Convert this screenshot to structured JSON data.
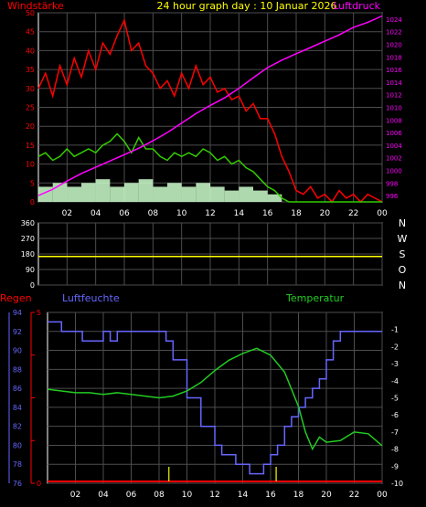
{
  "header": {
    "title": "24 hour graph day : 10 Januar 2026",
    "left_label": "Windstärke",
    "right_label": "Luftdruck"
  },
  "x_ticks": [
    "02",
    "04",
    "06",
    "08",
    "10",
    "12",
    "14",
    "16",
    "18",
    "20",
    "22",
    "00"
  ],
  "colors": {
    "wind_gust": "#ff0000",
    "wind_avg": "#33cc00",
    "wind_low": "#ccffcc",
    "pressure": "#ff00ff",
    "direction": "#ffff00",
    "humidity": "#6666ff",
    "temperature": "#22cc22",
    "rain": "#ff0000",
    "grid": "#4d4d4d"
  },
  "chart_data": [
    {
      "type": "line",
      "name_id": "wind-pressure",
      "title": "24 hour graph day : 10 Januar 2026",
      "ylabel": "Windstärke",
      "y2label": "Luftdruck",
      "x_range_hours": [
        0,
        24
      ],
      "ylim": [
        0,
        50
      ],
      "y_ticks": [
        "0",
        "5",
        "10",
        "15",
        "20",
        "25",
        "30",
        "35",
        "40",
        "45",
        "50"
      ],
      "y2lim": [
        995,
        1025
      ],
      "y2_ticks": [
        "996",
        "998",
        "1000",
        "1002",
        "1004",
        "1006",
        "1008",
        "1010",
        "1012",
        "1014",
        "1016",
        "1018",
        "1020",
        "1022",
        "1024"
      ],
      "series": [
        {
          "key": "gust",
          "x": [
            0,
            0.5,
            1,
            1.5,
            2,
            2.5,
            3,
            3.5,
            4,
            4.5,
            5,
            5.5,
            6,
            6.5,
            7,
            7.5,
            8,
            8.5,
            9,
            9.5,
            10,
            10.5,
            11,
            11.5,
            12,
            12.5,
            13,
            13.5,
            14,
            14.5,
            15,
            15.5,
            16,
            16.5,
            17,
            17.5,
            18,
            18.5,
            19,
            19.5,
            20,
            20.5,
            21,
            21.5,
            22,
            22.5,
            23,
            23.5,
            24
          ],
          "values": [
            30,
            34,
            28,
            36,
            31,
            38,
            33,
            40,
            35,
            42,
            39,
            44,
            48,
            40,
            42,
            36,
            34,
            30,
            32,
            28,
            34,
            30,
            36,
            31,
            33,
            29,
            30,
            27,
            28,
            24,
            26,
            22,
            22,
            18,
            12,
            8,
            3,
            2,
            4,
            1,
            2,
            0,
            3,
            1,
            2,
            0,
            2,
            1,
            0
          ]
        },
        {
          "key": "avg",
          "x": [
            0,
            0.5,
            1,
            1.5,
            2,
            2.5,
            3,
            3.5,
            4,
            4.5,
            5,
            5.5,
            6,
            6.5,
            7,
            7.5,
            8,
            8.5,
            9,
            9.5,
            10,
            10.5,
            11,
            11.5,
            12,
            12.5,
            13,
            13.5,
            14,
            14.5,
            15,
            15.5,
            16,
            16.5,
            17,
            17.5,
            18,
            18.5,
            19,
            19.5,
            20,
            20.5,
            21,
            21.5,
            22,
            22.5,
            23,
            23.5,
            24
          ],
          "values": [
            12,
            13,
            11,
            12,
            14,
            12,
            13,
            14,
            13,
            15,
            16,
            18,
            16,
            13,
            17,
            14,
            14,
            12,
            11,
            13,
            12,
            13,
            12,
            14,
            13,
            11,
            12,
            10,
            11,
            9,
            8,
            6,
            4,
            3,
            1,
            0,
            0,
            0,
            0,
            0,
            0,
            0,
            0,
            0,
            0,
            0,
            0,
            0,
            0
          ]
        },
        {
          "key": "low",
          "x": [
            0,
            1,
            2,
            3,
            4,
            5,
            6,
            7,
            8,
            9,
            10,
            11,
            12,
            13,
            14,
            15,
            16,
            17,
            18,
            19,
            20,
            21,
            22,
            23,
            24
          ],
          "values": [
            4,
            5,
            4,
            5,
            6,
            4,
            5,
            6,
            4,
            5,
            4,
            5,
            4,
            3,
            4,
            3,
            2,
            0,
            0,
            0,
            0,
            0,
            0,
            0,
            0
          ]
        },
        {
          "key": "pressure",
          "axis": "y2",
          "x": [
            0,
            1,
            2,
            3,
            4,
            5,
            6,
            7,
            8,
            9,
            10,
            11,
            12,
            13,
            14,
            15,
            16,
            17,
            18,
            19,
            20,
            21,
            22,
            23,
            24
          ],
          "values": [
            996,
            997,
            998.3,
            999.5,
            1000.5,
            1001.5,
            1002.5,
            1003.5,
            1004.7,
            1006,
            1007.5,
            1009,
            1010.3,
            1011.5,
            1013,
            1014.7,
            1016.3,
            1017.5,
            1018.5,
            1019.5,
            1020.5,
            1021.5,
            1022.7,
            1023.5,
            1024.5
          ]
        }
      ]
    },
    {
      "type": "line",
      "name_id": "wind-direction",
      "ylim": [
        0,
        360
      ],
      "y_ticks": [
        "0",
        "90",
        "180",
        "270",
        "360"
      ],
      "direction_letters": [
        "N",
        "W",
        "S",
        "O",
        "N"
      ],
      "series": [
        {
          "key": "direction",
          "x": [
            0,
            24
          ],
          "values": [
            165,
            165
          ]
        }
      ]
    },
    {
      "type": "line",
      "name_id": "humidity-temperature",
      "labels": {
        "rain": "Regen",
        "humidity": "Luftfeuchte",
        "temperature": "Temperatur"
      },
      "humidity_ylim": [
        76,
        94
      ],
      "humidity_ticks": [
        "76",
        "78",
        "80",
        "82",
        "84",
        "86",
        "88",
        "90",
        "92",
        "94"
      ],
      "rain_ticks": [
        "0",
        "",
        "",
        "",
        "5"
      ],
      "temp_ylim": [
        -10,
        0
      ],
      "temp_ticks": [
        "-1",
        "-2",
        "-3",
        "-4",
        "-5",
        "-6",
        "-7",
        "-8",
        "-9",
        "-10"
      ],
      "series": [
        {
          "key": "humidity",
          "x": [
            0,
            1,
            2,
            2.5,
            3,
            4,
            4.5,
            5,
            6,
            7,
            8,
            8.5,
            9,
            10,
            11,
            12,
            12.5,
            13,
            13.5,
            14,
            14.5,
            15,
            15.5,
            16,
            16.5,
            17,
            17.5,
            18,
            18.5,
            19,
            19.5,
            20,
            20.5,
            21,
            22,
            23,
            24
          ],
          "values": [
            93,
            92,
            92,
            91,
            91,
            92,
            91,
            92,
            92,
            92,
            92,
            91,
            89,
            85,
            82,
            80,
            79,
            79,
            78,
            78,
            77,
            77,
            78,
            79,
            80,
            82,
            83,
            84,
            85,
            86,
            87,
            89,
            91,
            92,
            92,
            92,
            92
          ]
        },
        {
          "key": "temperature",
          "x": [
            0,
            1,
            2,
            3,
            4,
            5,
            6,
            7,
            8,
            9,
            10,
            11,
            12,
            13,
            14,
            15,
            16,
            17,
            18,
            18.5,
            19,
            19.5,
            20,
            21,
            22,
            23,
            24
          ],
          "values": [
            -4.5,
            -4.6,
            -4.7,
            -4.7,
            -4.8,
            -4.7,
            -4.8,
            -4.9,
            -5.0,
            -4.9,
            -4.6,
            -4.1,
            -3.4,
            -2.8,
            -2.4,
            -2.1,
            -2.5,
            -3.5,
            -5.5,
            -7.0,
            -8.0,
            -7.3,
            -7.6,
            -7.5,
            -7.0,
            -7.1,
            -7.8
          ]
        },
        {
          "key": "rain",
          "x": [
            0,
            24
          ],
          "values": [
            0,
            0
          ],
          "markers_x": [
            8.7,
            16.4
          ]
        }
      ]
    }
  ]
}
